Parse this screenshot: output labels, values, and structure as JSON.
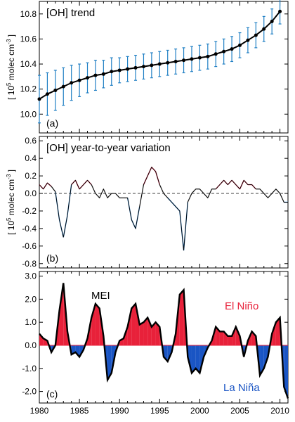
{
  "colors": {
    "trend_line": "#000000",
    "error_bar": "#1f7fc4",
    "positive_fill": "#e8213a",
    "negative_fill": "#1a55c4",
    "positive_line": "#e0284a",
    "negative_line": "#2a80cc",
    "gray_line": "#8a8a8a",
    "mean_line": "#000000"
  },
  "chart_data": [
    {
      "panel": "a",
      "type": "line",
      "title": "[OH] trend",
      "label": "(a)",
      "ylabel": {
        "prefix": "[ 10",
        "sup": "5",
        "mid": " molec cm",
        "sup2": "-3",
        "suffix": " ]"
      },
      "xlim": [
        1980,
        2011
      ],
      "ylim": [
        9.85,
        10.9
      ],
      "yticks": [
        10.0,
        10.2,
        10.4,
        10.6,
        10.8
      ],
      "ytick_labels": [
        "10.0",
        "10.2",
        "10.4",
        "10.6",
        "10.8"
      ],
      "series": [
        {
          "x": [
            1980,
            1981,
            1982,
            1983,
            1984,
            1985,
            1986,
            1987,
            1988,
            1989,
            1990,
            1991,
            1992,
            1993,
            1994,
            1995,
            1996,
            1997,
            1998,
            1999,
            2000,
            2001,
            2002,
            2003,
            2004,
            2005,
            2006,
            2007,
            2008,
            2009,
            2010
          ],
          "y": [
            10.12,
            10.16,
            10.19,
            10.22,
            10.25,
            10.27,
            10.29,
            10.31,
            10.32,
            10.34,
            10.35,
            10.36,
            10.37,
            10.38,
            10.39,
            10.4,
            10.41,
            10.42,
            10.43,
            10.44,
            10.45,
            10.46,
            10.48,
            10.5,
            10.52,
            10.55,
            10.59,
            10.63,
            10.68,
            10.74,
            10.82
          ],
          "err": [
            0.19,
            0.17,
            0.16,
            0.15,
            0.14,
            0.13,
            0.12,
            0.12,
            0.11,
            0.11,
            0.1,
            0.1,
            0.1,
            0.1,
            0.1,
            0.1,
            0.1,
            0.1,
            0.1,
            0.1,
            0.1,
            0.1,
            0.1,
            0.1,
            0.1,
            0.1,
            0.1,
            0.1,
            0.1,
            0.1,
            0.1
          ]
        }
      ]
    },
    {
      "panel": "b",
      "type": "line",
      "title": "[OH] year-to-year variation",
      "label": "(b)",
      "ylabel": {
        "prefix": "[ 10",
        "sup": "5",
        "mid": " molec cm",
        "sup2": "-3",
        "suffix": " ]"
      },
      "xlim": [
        1980,
        2011
      ],
      "ylim": [
        -0.85,
        0.65
      ],
      "yticks": [
        -0.8,
        -0.6,
        -0.4,
        -0.2,
        0.0,
        0.2,
        0.4,
        0.6
      ],
      "ytick_labels": [
        "-0.8",
        "-0.6",
        "-0.4",
        "-0.2",
        "0.0",
        "0.2",
        "0.4",
        "0.6"
      ],
      "series": [
        {
          "x": [
            1980.0,
            1980.5,
            1981.0,
            1981.5,
            1982.0,
            1982.5,
            1983.0,
            1983.5,
            1984.0,
            1984.5,
            1985.0,
            1985.5,
            1986.0,
            1986.5,
            1987.0,
            1987.5,
            1988.0,
            1988.5,
            1989.0,
            1989.5,
            1990.0,
            1990.5,
            1991.0,
            1991.5,
            1992.0,
            1992.5,
            1993.0,
            1993.5,
            1994.0,
            1994.5,
            1995.0,
            1995.5,
            1996.0,
            1996.5,
            1997.0,
            1997.5,
            1998.0,
            1998.5,
            1999.0,
            1999.5,
            2000.0,
            2000.5,
            2001.0,
            2001.5,
            2002.0,
            2002.5,
            2003.0,
            2003.5,
            2004.0,
            2004.5,
            2005.0,
            2005.5,
            2006.0,
            2006.5,
            2007.0,
            2007.5,
            2008.0,
            2008.5,
            2009.0,
            2009.5,
            2010.0,
            2010.5,
            2011.0
          ],
          "y": [
            0.1,
            0.05,
            0.12,
            0.08,
            0.02,
            -0.3,
            -0.5,
            -0.25,
            0.1,
            0.15,
            0.05,
            0.1,
            0.15,
            0.1,
            0.0,
            -0.05,
            0.05,
            -0.05,
            0.0,
            0.0,
            -0.05,
            -0.05,
            -0.05,
            -0.3,
            -0.4,
            -0.15,
            0.1,
            0.2,
            0.3,
            0.25,
            0.1,
            0.0,
            -0.05,
            -0.1,
            -0.15,
            -0.2,
            -0.65,
            -0.1,
            0.0,
            0.05,
            0.05,
            0.0,
            -0.05,
            0.05,
            0.05,
            0.1,
            0.15,
            0.1,
            0.15,
            0.1,
            0.05,
            0.15,
            0.1,
            0.1,
            0.05,
            0.05,
            0.0,
            -0.05,
            0.0,
            0.05,
            0.0,
            -0.1,
            -0.1
          ]
        }
      ]
    },
    {
      "panel": "c",
      "type": "area",
      "title": "",
      "label": "(c)",
      "annotations": [
        "MEI",
        "El Niño",
        "La Niña"
      ],
      "xlim": [
        1980,
        2011
      ],
      "ylim": [
        -2.5,
        3.2
      ],
      "yticks": [
        -2.0,
        -1.0,
        0.0,
        1.0,
        2.0,
        3.0
      ],
      "ytick_labels": [
        "-2.0",
        "-1.0",
        "0.0",
        "1.0",
        "2.0",
        "3.0"
      ],
      "xticks": [
        1980,
        1985,
        1990,
        1995,
        2000,
        2005,
        2010
      ],
      "xtick_labels": [
        "1980",
        "1985",
        "1990",
        "1995",
        "2000",
        "2005",
        "2010"
      ],
      "series": [
        {
          "x": [
            1980.0,
            1980.5,
            1981.0,
            1981.5,
            1982.0,
            1982.5,
            1983.0,
            1983.5,
            1984.0,
            1984.5,
            1985.0,
            1985.5,
            1986.0,
            1986.5,
            1987.0,
            1987.5,
            1988.0,
            1988.5,
            1989.0,
            1989.5,
            1990.0,
            1990.5,
            1991.0,
            1991.5,
            1992.0,
            1992.5,
            1993.0,
            1993.5,
            1994.0,
            1994.5,
            1995.0,
            1995.5,
            1996.0,
            1996.5,
            1997.0,
            1997.5,
            1998.0,
            1998.5,
            1999.0,
            1999.5,
            2000.0,
            2000.5,
            2001.0,
            2001.5,
            2002.0,
            2002.5,
            2003.0,
            2003.5,
            2004.0,
            2004.5,
            2005.0,
            2005.5,
            2006.0,
            2006.5,
            2007.0,
            2007.5,
            2008.0,
            2008.5,
            2009.0,
            2009.5,
            2010.0,
            2010.5,
            2011.0
          ],
          "y": [
            0.5,
            0.3,
            0.2,
            -0.3,
            0.0,
            1.5,
            2.7,
            0.6,
            -0.4,
            -0.3,
            -0.5,
            -0.2,
            0.3,
            1.2,
            1.8,
            1.6,
            0.4,
            -1.5,
            -1.2,
            -0.3,
            0.2,
            0.3,
            0.8,
            1.6,
            1.8,
            0.9,
            1.0,
            1.2,
            0.8,
            1.0,
            0.8,
            -0.5,
            -0.7,
            -0.3,
            0.5,
            2.2,
            2.4,
            -0.5,
            -1.2,
            -1.0,
            -1.2,
            -0.5,
            -0.1,
            0.2,
            0.8,
            0.6,
            0.6,
            0.4,
            0.4,
            0.8,
            0.4,
            -0.5,
            0.2,
            0.6,
            0.4,
            -1.3,
            -1.0,
            -0.5,
            0.5,
            1.0,
            1.2,
            -1.8,
            -2.3
          ]
        }
      ]
    }
  ]
}
